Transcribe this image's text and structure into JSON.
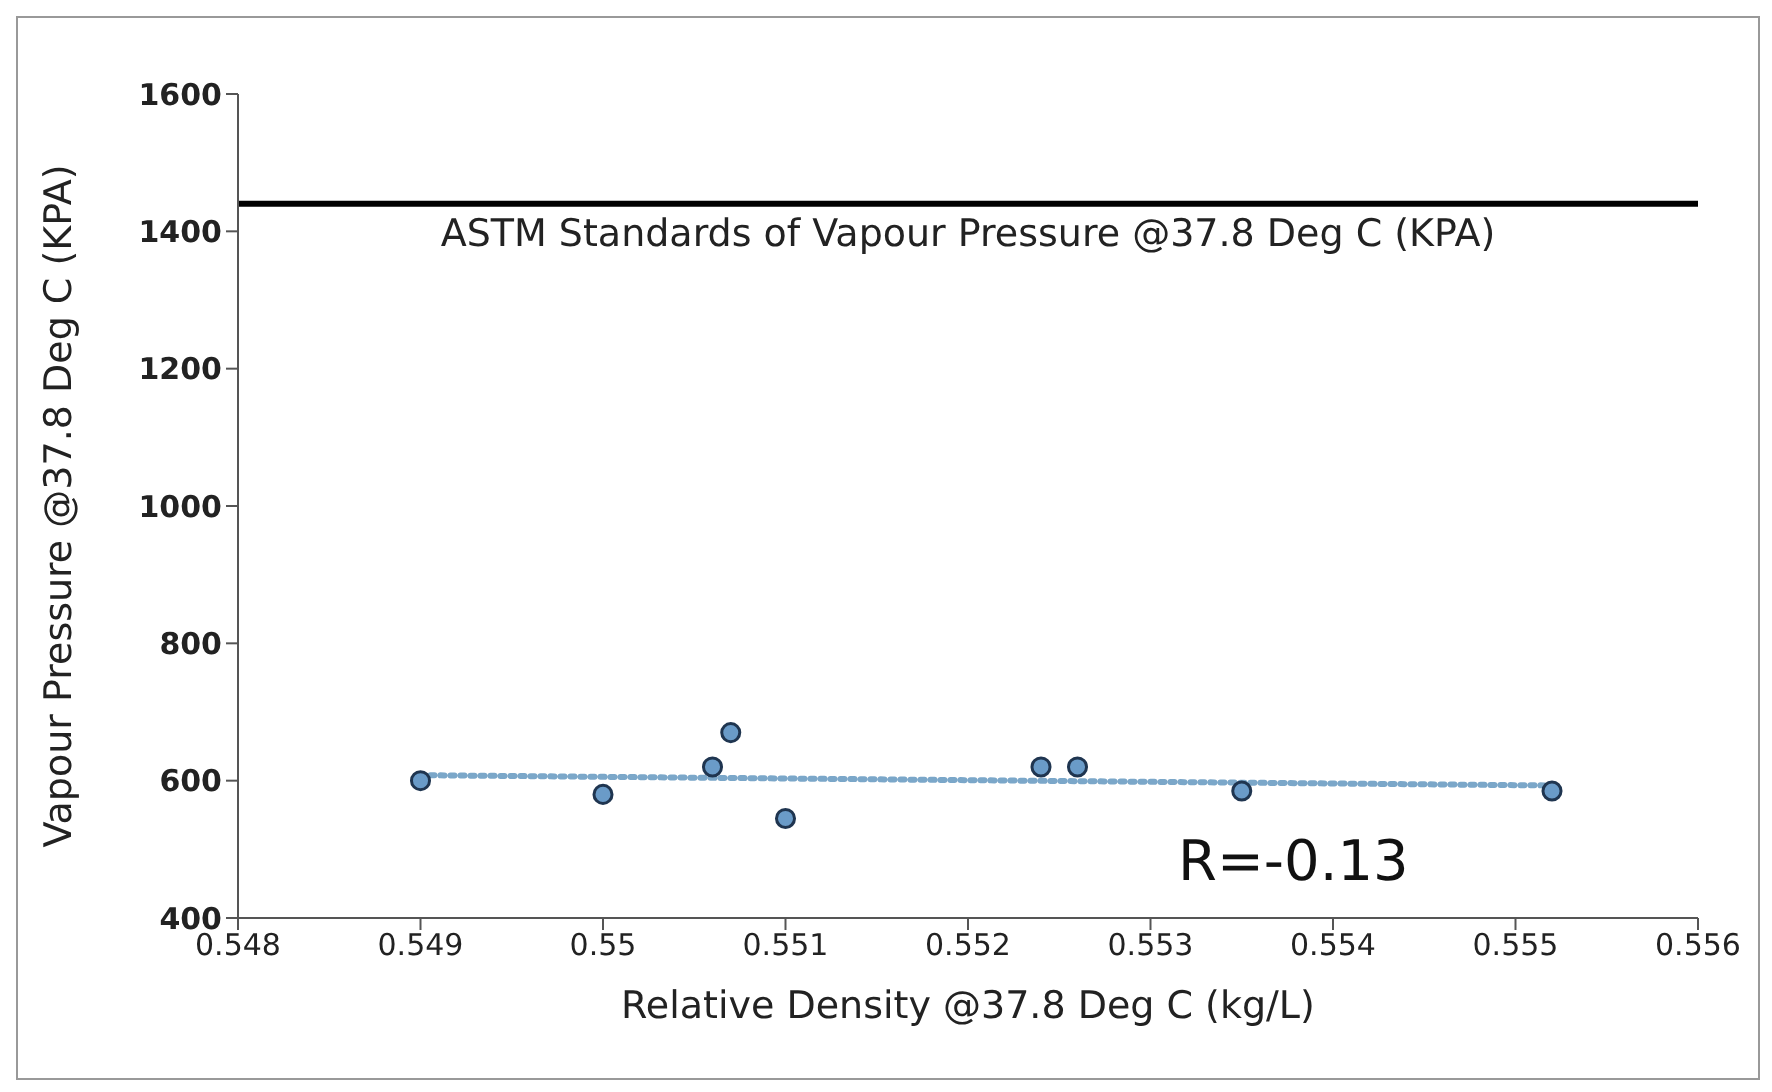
{
  "chart_data": {
    "type": "scatter",
    "xlabel": "Relative Density  @37.8 Deg C (kg/L)",
    "ylabel": "Vapour Pressure @37.8 Deg C (KPA)",
    "series": [
      {
        "color": "#6a9bc8",
        "x": [
          0.549,
          0.55,
          0.5506,
          0.5507,
          0.551,
          0.5524,
          0.5526,
          0.5535,
          0.5552
        ],
        "values": [
          600,
          580,
          620,
          670,
          545,
          620,
          620,
          585,
          585
        ],
        "marker": "circle"
      },
      {
        "type": "line",
        "color": "#7ba7c9",
        "x": [
          0.549,
          0.5552
        ],
        "values": [
          608,
          593
        ],
        "line_style": "dotted",
        "marker": "none"
      }
    ],
    "xlim": [
      0.548,
      0.556
    ],
    "xticks": [
      0.548,
      0.549,
      0.55,
      0.551,
      0.552,
      0.553,
      0.554,
      0.555,
      0.556
    ],
    "ylim": [
      400,
      1600
    ],
    "yticks": [
      400,
      600,
      800,
      1000,
      1200,
      1400,
      1600
    ],
    "ref_lines": [
      {
        "axis": "y",
        "value": 1440,
        "label": "ASTM Standards of Vapour Pressure @37.8 Deg C (KPA)",
        "color": "#000000",
        "line_style": "solid"
      }
    ],
    "annotations": [
      "R=-0.13"
    ],
    "grid": false,
    "legend": false
  }
}
